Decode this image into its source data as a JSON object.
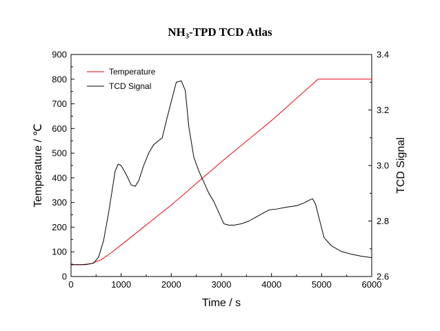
{
  "chart_data": {
    "type": "line",
    "title": "NH₃-TPD TCD Atlas",
    "xlabel": "Time / s",
    "ylabel_left": "Temperature / ℃",
    "ylabel_right": "TCD Signal",
    "xlim": [
      0,
      6000
    ],
    "ylim_left": [
      0,
      900
    ],
    "ylim_right": [
      2.6,
      3.4
    ],
    "x_ticks": [
      0,
      1000,
      2000,
      3000,
      4000,
      5000,
      6000
    ],
    "x_tick_labels": [
      "0",
      "1000",
      "2000",
      "3000",
      "4000",
      "5000",
      "6000"
    ],
    "y_left_ticks": [
      0,
      100,
      200,
      300,
      400,
      500,
      600,
      700,
      800,
      900
    ],
    "y_left_tick_labels": [
      "0",
      "100",
      "200",
      "300",
      "400",
      "500",
      "600",
      "700",
      "800",
      "900"
    ],
    "y_right_ticks": [
      2.6,
      2.8,
      3.0,
      3.2,
      3.4
    ],
    "y_right_tick_labels": [
      "2.6",
      "2.8",
      "3.0",
      "3.2",
      "3.4"
    ],
    "grid": false,
    "legend_position": "top-left",
    "series": [
      {
        "name": "Temperature",
        "axis": "left",
        "color": "#e8000b",
        "x": [
          0,
          200,
          400,
          600,
          800,
          1000,
          2000,
          3000,
          4000,
          4930,
          6000
        ],
        "y": [
          48,
          48,
          52,
          68,
          96,
          128,
          290,
          465,
          632,
          800,
          800
        ]
      },
      {
        "name": "TCD Signal",
        "axis": "right",
        "color": "#000000",
        "x": [
          0,
          300,
          450,
          550,
          650,
          750,
          820,
          880,
          940,
          1000,
          1100,
          1200,
          1280,
          1350,
          1450,
          1550,
          1650,
          1750,
          1820,
          1900,
          2000,
          2100,
          2200,
          2280,
          2350,
          2450,
          2550,
          2650,
          2750,
          2850,
          2950,
          3050,
          3150,
          3250,
          3400,
          3550,
          3700,
          3850,
          3950,
          4100,
          4300,
          4500,
          4650,
          4750,
          4820,
          4880,
          4950,
          5050,
          5200,
          5400,
          5600,
          5800,
          6000
        ],
        "y": [
          2.643,
          2.643,
          2.648,
          2.67,
          2.73,
          2.83,
          2.91,
          2.98,
          3.005,
          3.0,
          2.968,
          2.93,
          2.925,
          2.945,
          3.0,
          3.045,
          3.075,
          3.09,
          3.1,
          3.16,
          3.23,
          3.3,
          3.305,
          3.27,
          3.14,
          3.03,
          2.98,
          2.94,
          2.9,
          2.87,
          2.83,
          2.79,
          2.785,
          2.785,
          2.79,
          2.8,
          2.815,
          2.83,
          2.84,
          2.843,
          2.85,
          2.855,
          2.865,
          2.875,
          2.88,
          2.86,
          2.81,
          2.74,
          2.71,
          2.69,
          2.68,
          2.673,
          2.668
        ]
      }
    ]
  }
}
